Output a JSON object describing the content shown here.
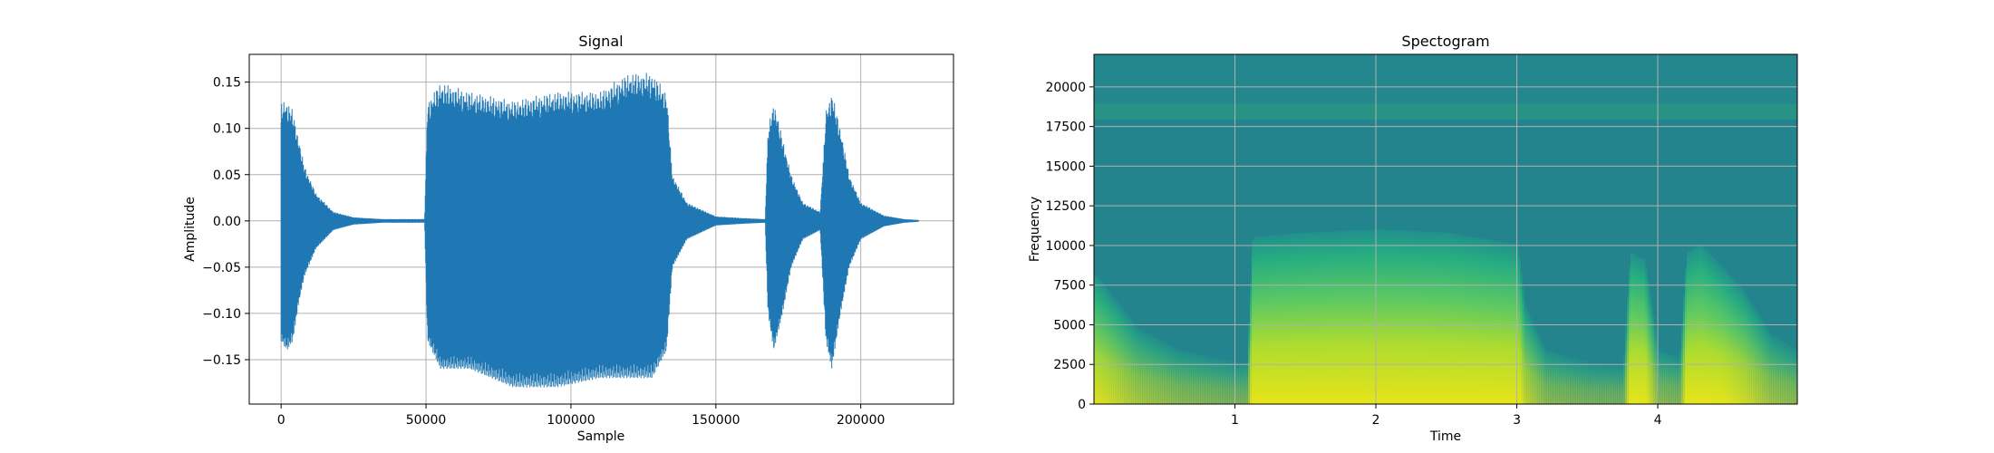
{
  "colors": {
    "signal": "#1f77b4",
    "grid": "#b0b0b0",
    "viridis_low": "#24848d",
    "viridis_mid": "#5ec962",
    "viridis_high": "#e7e419"
  },
  "chart_data": [
    {
      "type": "line",
      "title": "Signal",
      "xlabel": "Sample",
      "ylabel": "Amplitude",
      "xlim": [
        -11000,
        232000
      ],
      "ylim": [
        -0.198,
        0.18
      ],
      "grid": true,
      "xticks": [
        0,
        50000,
        100000,
        150000,
        200000
      ],
      "xtick_labels": [
        "0",
        "50000",
        "100000",
        "150000",
        "200000"
      ],
      "yticks": [
        -0.15,
        -0.1,
        -0.05,
        0.0,
        0.05,
        0.1,
        0.15
      ],
      "ytick_labels": [
        "−0.15",
        "−0.10",
        "−0.05",
        "0.00",
        "0.05",
        "0.10",
        "0.15"
      ],
      "series": [
        {
          "envelope_x": [
            0,
            2000,
            4000,
            6000,
            8000,
            12000,
            18000,
            25000,
            35000,
            45000,
            49500,
            50500,
            55000,
            65000,
            80000,
            95000,
            110000,
            120000,
            128000,
            133000,
            135000,
            140000,
            150000,
            160000,
            167000,
            168000,
            170000,
            173000,
            176000,
            180000,
            186000,
            188000,
            190000,
            193000,
            196000,
            200000,
            208000,
            215000,
            220000
          ],
          "envelope_upper": [
            0.13,
            0.13,
            0.12,
            0.09,
            0.06,
            0.03,
            0.01,
            0.004,
            0.002,
            0.002,
            0.002,
            0.13,
            0.15,
            0.14,
            0.13,
            0.14,
            0.14,
            0.16,
            0.16,
            0.14,
            0.05,
            0.02,
            0.005,
            0.003,
            0.002,
            0.1,
            0.13,
            0.09,
            0.05,
            0.02,
            0.01,
            0.12,
            0.14,
            0.1,
            0.05,
            0.02,
            0.006,
            0.002,
            0.001
          ],
          "envelope_lower": [
            -0.13,
            -0.14,
            -0.13,
            -0.09,
            -0.06,
            -0.03,
            -0.01,
            -0.004,
            -0.002,
            -0.002,
            -0.002,
            -0.13,
            -0.16,
            -0.16,
            -0.18,
            -0.18,
            -0.17,
            -0.17,
            -0.17,
            -0.14,
            -0.05,
            -0.02,
            -0.005,
            -0.003,
            -0.002,
            -0.1,
            -0.14,
            -0.1,
            -0.05,
            -0.02,
            -0.01,
            -0.13,
            -0.16,
            -0.1,
            -0.05,
            -0.02,
            -0.006,
            -0.002,
            -0.001
          ]
        }
      ]
    },
    {
      "type": "heatmap",
      "title": "Spectogram",
      "xlabel": "Time",
      "ylabel": "Frequency",
      "xlim": [
        0,
        4.99
      ],
      "ylim": [
        0,
        22050
      ],
      "grid": true,
      "xticks": [
        1,
        2,
        3,
        4
      ],
      "xtick_labels": [
        "1",
        "2",
        "3",
        "4"
      ],
      "yticks": [
        0,
        2500,
        5000,
        7500,
        10000,
        12500,
        15000,
        17500,
        20000
      ],
      "ytick_labels": [
        "0",
        "2500",
        "5000",
        "7500",
        "10000",
        "12500",
        "15000",
        "17500",
        "20000"
      ],
      "activity_time": [
        0,
        0.05,
        0.3,
        0.6,
        1.0,
        1.08,
        1.12,
        1.5,
        2.0,
        2.5,
        3.0,
        3.05,
        3.2,
        3.5,
        3.75,
        3.8,
        3.9,
        4.0,
        4.15,
        4.2,
        4.3,
        4.6,
        4.8,
        4.99
      ],
      "activity_level": [
        0.7,
        0.65,
        0.35,
        0.2,
        0.12,
        0.12,
        0.95,
        0.98,
        1.0,
        0.98,
        0.9,
        0.5,
        0.2,
        0.12,
        0.1,
        0.85,
        0.8,
        0.2,
        0.15,
        0.85,
        0.9,
        0.6,
        0.3,
        0.2
      ],
      "band_frequency": 18500
    }
  ]
}
